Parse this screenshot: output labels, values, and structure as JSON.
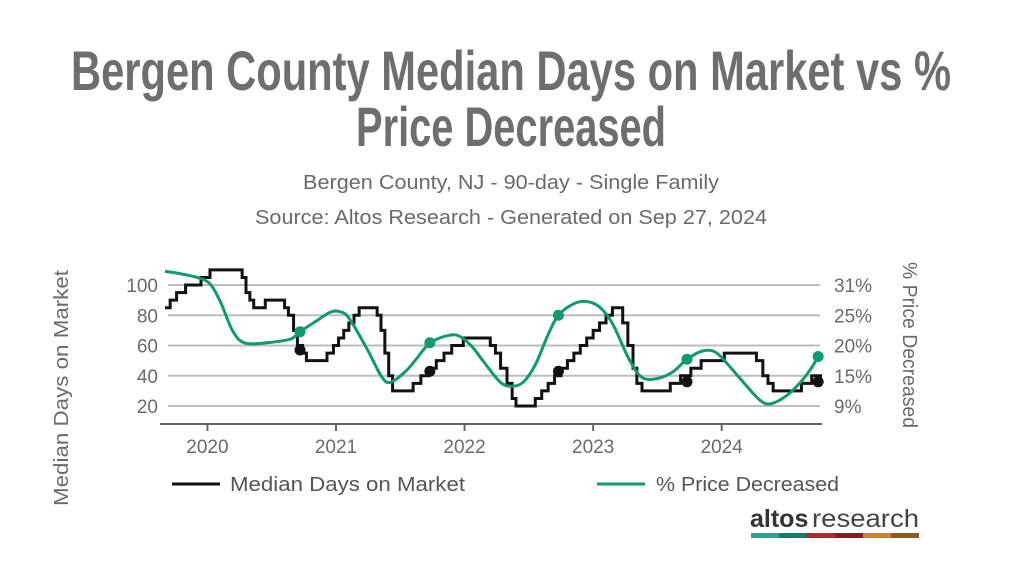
{
  "title_line1": "Bergen County Median Days on Market vs %",
  "title_line2": "Price Decreased",
  "subtitle": "Bergen County, NJ - 90-day - Single Family",
  "source": "Source: Altos Research - Generated on Sep 27, 2024",
  "logo": {
    "text_bold": "altos",
    "text_light": "research",
    "bar_colors": [
      "#1fa89a",
      "#167a6c",
      "#c0202e",
      "#8b1a24",
      "#c6852b",
      "#8a5a24"
    ]
  },
  "chart_data": {
    "type": "line",
    "title": "Bergen County Median Days on Market vs % Price Decreased",
    "xlabel": "",
    "ylabel": "Median Days on Market",
    "y2label": "% Price Decreased",
    "xlim": [
      2019.67,
      2024.78
    ],
    "ylim": [
      20,
      100
    ],
    "y2lim": [
      9,
      31
    ],
    "x_ticks": [
      2020,
      2021,
      2022,
      2023,
      2024
    ],
    "x_tick_labels": [
      "2020",
      "2021",
      "2022",
      "2023",
      "2024"
    ],
    "y_tick_labels": [
      "100",
      "80",
      "60",
      "40",
      "20"
    ],
    "y2_tick_labels": [
      "31%",
      "25%",
      "20%",
      "15%",
      "9%"
    ],
    "grid": true,
    "legend_position": "bottom",
    "series": [
      {
        "name": "Median Days on Market",
        "color": "#111111",
        "style": "step",
        "points": [
          [
            2019.67,
            85
          ],
          [
            2019.71,
            90
          ],
          [
            2019.76,
            95
          ],
          [
            2019.83,
            100
          ],
          [
            2019.95,
            105
          ],
          [
            2020.02,
            110
          ],
          [
            2020.27,
            105
          ],
          [
            2020.3,
            95
          ],
          [
            2020.33,
            90
          ],
          [
            2020.36,
            85
          ],
          [
            2020.45,
            90
          ],
          [
            2020.6,
            85
          ],
          [
            2020.63,
            80
          ],
          [
            2020.67,
            70
          ],
          [
            2020.7,
            60
          ],
          [
            2020.74,
            55
          ],
          [
            2020.77,
            50
          ],
          [
            2020.93,
            55
          ],
          [
            2020.98,
            60
          ],
          [
            2021.02,
            65
          ],
          [
            2021.06,
            70
          ],
          [
            2021.1,
            75
          ],
          [
            2021.14,
            80
          ],
          [
            2021.18,
            85
          ],
          [
            2021.32,
            80
          ],
          [
            2021.35,
            70
          ],
          [
            2021.38,
            55
          ],
          [
            2021.41,
            40
          ],
          [
            2021.44,
            30
          ],
          [
            2021.6,
            35
          ],
          [
            2021.66,
            40
          ],
          [
            2021.72,
            45
          ],
          [
            2021.78,
            50
          ],
          [
            2021.84,
            55
          ],
          [
            2021.9,
            60
          ],
          [
            2021.99,
            65
          ],
          [
            2022.2,
            60
          ],
          [
            2022.24,
            55
          ],
          [
            2022.28,
            45
          ],
          [
            2022.33,
            35
          ],
          [
            2022.37,
            25
          ],
          [
            2022.4,
            20
          ],
          [
            2022.55,
            25
          ],
          [
            2022.6,
            30
          ],
          [
            2022.65,
            35
          ],
          [
            2022.7,
            40
          ],
          [
            2022.75,
            45
          ],
          [
            2022.8,
            50
          ],
          [
            2022.85,
            55
          ],
          [
            2022.9,
            60
          ],
          [
            2022.95,
            65
          ],
          [
            2023.0,
            70
          ],
          [
            2023.05,
            75
          ],
          [
            2023.1,
            80
          ],
          [
            2023.15,
            85
          ],
          [
            2023.23,
            75
          ],
          [
            2023.27,
            60
          ],
          [
            2023.31,
            45
          ],
          [
            2023.34,
            35
          ],
          [
            2023.38,
            30
          ],
          [
            2023.6,
            35
          ],
          [
            2023.68,
            40
          ],
          [
            2023.76,
            45
          ],
          [
            2023.84,
            50
          ],
          [
            2024.02,
            55
          ],
          [
            2024.27,
            50
          ],
          [
            2024.32,
            40
          ],
          [
            2024.36,
            35
          ],
          [
            2024.4,
            30
          ],
          [
            2024.62,
            35
          ],
          [
            2024.7,
            40
          ],
          [
            2024.78,
            40
          ]
        ],
        "markers": [
          [
            2020.72,
            57
          ],
          [
            2021.73,
            43
          ],
          [
            2022.73,
            43
          ],
          [
            2023.73,
            36
          ],
          [
            2024.75,
            36
          ]
        ]
      },
      {
        "name": "% Price Decreased",
        "color": "#0f9a72",
        "axis": "right",
        "style": "smooth",
        "points": [
          [
            2019.67,
            33.5
          ],
          [
            2019.8,
            33
          ],
          [
            2019.93,
            32.3
          ],
          [
            2020.02,
            31.2
          ],
          [
            2020.1,
            28
          ],
          [
            2020.2,
            22.5
          ],
          [
            2020.3,
            20.4
          ],
          [
            2020.5,
            20.6
          ],
          [
            2020.65,
            21.2
          ],
          [
            2020.72,
            22.5
          ],
          [
            2020.85,
            24.5
          ],
          [
            2020.95,
            26
          ],
          [
            2021.02,
            26.2
          ],
          [
            2021.1,
            25
          ],
          [
            2021.25,
            19
          ],
          [
            2021.35,
            14.5
          ],
          [
            2021.42,
            13.3
          ],
          [
            2021.55,
            15.5
          ],
          [
            2021.68,
            19.2
          ],
          [
            2021.73,
            20.5
          ],
          [
            2021.85,
            21.7
          ],
          [
            2021.95,
            21.8
          ],
          [
            2022.05,
            20
          ],
          [
            2022.15,
            17
          ],
          [
            2022.27,
            13.5
          ],
          [
            2022.35,
            12.6
          ],
          [
            2022.45,
            13.2
          ],
          [
            2022.55,
            16.5
          ],
          [
            2022.65,
            22
          ],
          [
            2022.73,
            25.5
          ],
          [
            2022.85,
            27.6
          ],
          [
            2022.95,
            28
          ],
          [
            2023.05,
            27
          ],
          [
            2023.15,
            24
          ],
          [
            2023.28,
            17.5
          ],
          [
            2023.38,
            14.2
          ],
          [
            2023.5,
            14
          ],
          [
            2023.62,
            15.2
          ],
          [
            2023.73,
            17.5
          ],
          [
            2023.85,
            19
          ],
          [
            2023.95,
            18.8
          ],
          [
            2024.05,
            16.5
          ],
          [
            2024.18,
            13
          ],
          [
            2024.3,
            10
          ],
          [
            2024.38,
            9.4
          ],
          [
            2024.5,
            10.8
          ],
          [
            2024.62,
            13.5
          ],
          [
            2024.7,
            16
          ],
          [
            2024.75,
            18
          ]
        ],
        "markers": [
          [
            2020.72,
            22.5
          ],
          [
            2021.73,
            20.5
          ],
          [
            2022.73,
            25.5
          ],
          [
            2023.73,
            17.5
          ],
          [
            2024.75,
            18
          ]
        ]
      }
    ]
  }
}
